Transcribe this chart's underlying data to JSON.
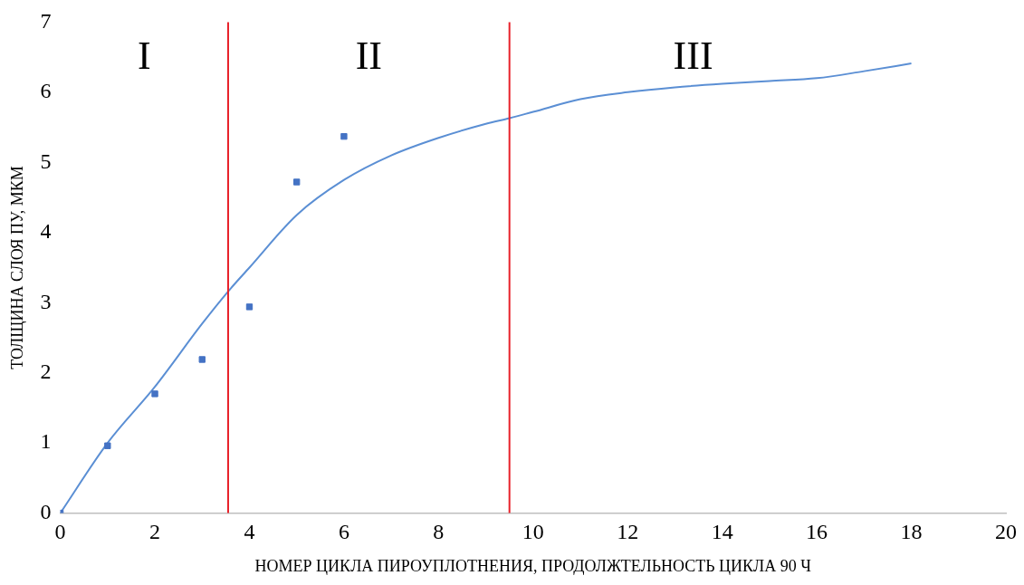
{
  "chart_data": {
    "type": "scatter",
    "xlabel": "НОМЕР ЦИКЛА ПИРОУПЛОТНЕНИЯ, ПРОДОЛЖТЕЛЬНОСТЬ ЦИКЛА 90 Ч",
    "ylabel": "ТОЛЩИНА СЛОЯ ПУ, МКМ",
    "series": [
      {
        "marker": "square",
        "color": "#4472c4",
        "x": [
          0,
          1,
          2,
          3,
          4,
          5,
          6
        ],
        "values": [
          0,
          0.96,
          1.7,
          2.19,
          2.94,
          4.72,
          5.37
        ]
      },
      {
        "type": "line",
        "marker": "none",
        "line_style": "solid",
        "color": "#5b8fd4",
        "x": [
          0,
          1,
          2,
          3,
          3.55,
          4,
          5,
          6,
          7,
          8,
          9,
          9.5,
          10,
          11,
          12,
          13,
          14,
          15,
          16,
          17,
          18
        ],
        "values": [
          0,
          1,
          1.8,
          2.7,
          3.16,
          3.5,
          4.25,
          4.75,
          5.1,
          5.35,
          5.55,
          5.63,
          5.72,
          5.9,
          6.0,
          6.07,
          6.12,
          6.16,
          6.2,
          6.3,
          6.41
        ]
      }
    ],
    "ref_lines": [
      {
        "axis": "x",
        "value": 3.55,
        "color": "#e8212a"
      },
      {
        "axis": "x",
        "value": 9.5,
        "color": "#e8212a"
      }
    ],
    "annotations": [
      "I",
      "II",
      "III"
    ],
    "xlim": [
      0,
      20
    ],
    "xticks": [
      0,
      2,
      4,
      6,
      8,
      10,
      12,
      14,
      16,
      18,
      20
    ],
    "ylim": [
      0,
      7
    ],
    "yticks": [
      0,
      1,
      2,
      3,
      4,
      5,
      6,
      7
    ],
    "grid": false,
    "legend": false
  }
}
